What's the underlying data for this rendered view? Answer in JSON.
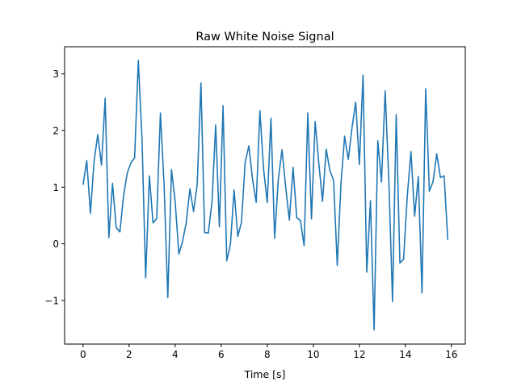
{
  "chart_data": {
    "type": "line",
    "title": "Raw White Noise Signal",
    "xlabel": "Time [s]",
    "ylabel": "",
    "xlim": [
      -0.8,
      16.6
    ],
    "ylim": [
      -1.77,
      3.48
    ],
    "xticks": [
      0,
      2,
      4,
      6,
      8,
      10,
      12,
      14,
      16
    ],
    "yticks": [
      -1,
      0,
      1,
      2,
      3
    ],
    "ytick_labels": [
      "−1",
      "0",
      "1",
      "2",
      "3"
    ],
    "grid": false,
    "legend": "none",
    "line_color": "#1f77b4",
    "series": [
      {
        "x": [
          0.0,
          0.16,
          0.32,
          0.48,
          0.64,
          0.8,
          0.96,
          1.12,
          1.28,
          1.44,
          1.6,
          1.76,
          1.92,
          2.08,
          2.24,
          2.4,
          2.56,
          2.72,
          2.88,
          3.04,
          3.2,
          3.36,
          3.52,
          3.68,
          3.84,
          4.0,
          4.16,
          4.32,
          4.48,
          4.64,
          4.8,
          4.96,
          5.12,
          5.28,
          5.44,
          5.6,
          5.76,
          5.92,
          6.08,
          6.24,
          6.4,
          6.56,
          6.72,
          6.88,
          7.04,
          7.2,
          7.36,
          7.52,
          7.68,
          7.84,
          8.0,
          8.16,
          8.32,
          8.48,
          8.64,
          8.8,
          8.96,
          9.12,
          9.28,
          9.44,
          9.6,
          9.76,
          9.92,
          10.08,
          10.24,
          10.4,
          10.56,
          10.72,
          10.88,
          11.04,
          11.2,
          11.36,
          11.52,
          11.68,
          11.84,
          12.0,
          12.16,
          12.32,
          12.48,
          12.64,
          12.8,
          12.96,
          13.12,
          13.28,
          13.44,
          13.6,
          13.76,
          13.92,
          14.08,
          14.24,
          14.4,
          14.56,
          14.72,
          14.88,
          15.04,
          15.2,
          15.36,
          15.52,
          15.68,
          15.84
        ],
        "values": [
          1.04,
          1.47,
          0.54,
          1.46,
          1.93,
          1.39,
          2.57,
          0.11,
          1.07,
          0.29,
          0.21,
          0.85,
          1.25,
          1.43,
          1.52,
          3.24,
          1.86,
          -0.6,
          1.2,
          0.37,
          0.45,
          2.31,
          1.04,
          -0.95,
          1.31,
          0.75,
          -0.18,
          0.04,
          0.37,
          0.97,
          0.57,
          1.06,
          2.84,
          0.2,
          0.19,
          0.74,
          2.1,
          0.3,
          2.44,
          -0.3,
          -0.01,
          0.95,
          0.13,
          0.38,
          1.44,
          1.73,
          1.14,
          0.73,
          2.35,
          1.32,
          0.73,
          2.22,
          0.1,
          1.14,
          1.66,
          1.0,
          0.42,
          1.35,
          0.46,
          0.41,
          -0.03,
          2.31,
          0.44,
          2.16,
          1.42,
          0.75,
          1.67,
          1.29,
          1.12,
          -0.38,
          1.06,
          1.9,
          1.49,
          2.05,
          2.5,
          1.4,
          2.98,
          -0.5,
          0.76,
          -1.52,
          1.82,
          1.09,
          2.7,
          1.11,
          -1.02,
          2.28,
          -0.34,
          -0.27,
          0.84,
          1.63,
          0.49,
          1.19,
          -0.87,
          2.74,
          0.93,
          1.1,
          1.59,
          1.17,
          1.2,
          0.07
        ]
      }
    ]
  }
}
